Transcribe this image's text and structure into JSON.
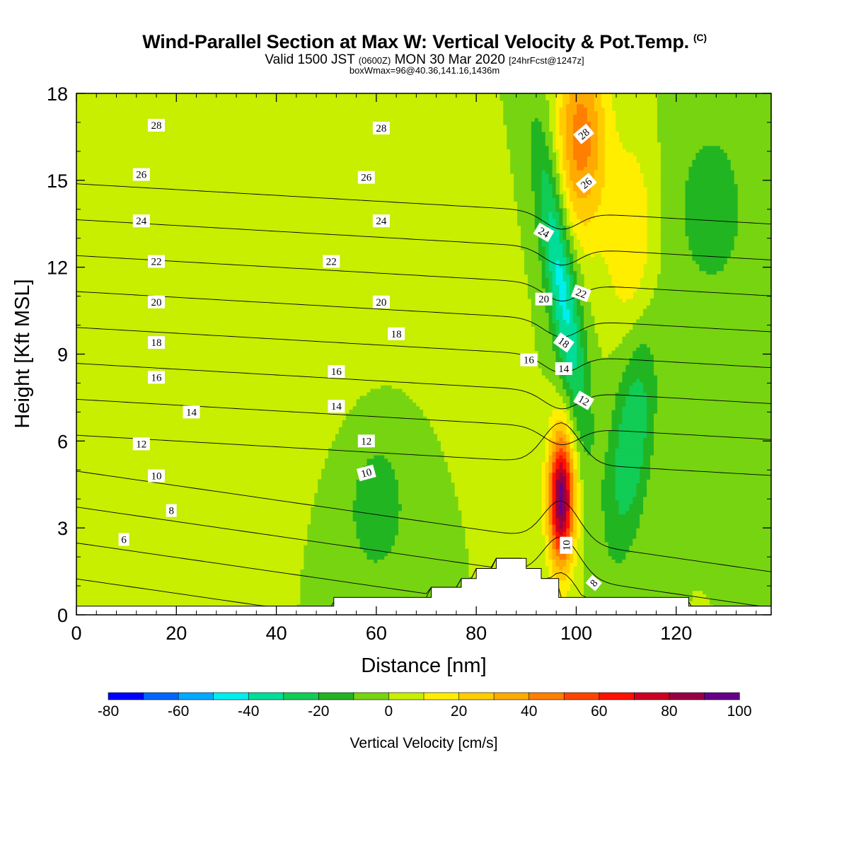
{
  "header": {
    "title": "Wind-Parallel Section at Max W: Vertical Velocity & Pot.Temp.",
    "copyright": "(C)",
    "valid_prefix": "Valid 1500 JST",
    "valid_utc": "(0600Z)",
    "valid_date": "MON 30 Mar 2020",
    "forecast": "[24hrFcst@1247z]",
    "box_info": "boxWmax=96@40.36,141.16,1436m"
  },
  "colorbar": {
    "label": "Vertical Velocity [cm/s]",
    "bounds": [
      -80,
      -70,
      -60,
      -50,
      -40,
      -30,
      -20,
      -10,
      0,
      10,
      20,
      30,
      40,
      50,
      60,
      70,
      80,
      90,
      100
    ],
    "tick_labels": [
      "-80",
      "-60",
      "-40",
      "-20",
      "0",
      "20",
      "40",
      "60",
      "80",
      "100"
    ],
    "colors": [
      "#0000ff",
      "#0066ff",
      "#00aaff",
      "#00eeee",
      "#00dd99",
      "#11cc55",
      "#22b522",
      "#77d411",
      "#c8ee00",
      "#ffee00",
      "#ffcc00",
      "#ffaa00",
      "#ff7f00",
      "#ff4400",
      "#ff1100",
      "#cc0022",
      "#990044",
      "#660088"
    ]
  },
  "chart_data": {
    "type": "heatmap",
    "title": "Wind-Parallel Section at Max W: Vertical Velocity & Pot.Temp.",
    "xlabel": "Distance [nm]",
    "ylabel": "Height [Kft MSL]",
    "xlim": [
      0,
      139
    ],
    "ylim": [
      0,
      18
    ],
    "x_ticks": [
      0,
      20,
      40,
      60,
      80,
      100,
      120
    ],
    "y_ticks": [
      0,
      3,
      6,
      9,
      12,
      15,
      18
    ],
    "background_w": 0,
    "w_features": [
      {
        "kind": "updraft",
        "x": 97,
        "y": 4.0,
        "w_max": 96
      },
      {
        "kind": "updraft",
        "x": 101,
        "y": 16.5,
        "w_max": 45
      },
      {
        "kind": "updraft",
        "x": 111,
        "y": 13.0,
        "w_max": 20
      },
      {
        "kind": "downdraft",
        "x": 97,
        "y": 11.5,
        "w_min": -45
      },
      {
        "kind": "downdraft",
        "x": 111,
        "y": 6.0,
        "w_min": -30
      },
      {
        "kind": "downdraft",
        "x": 60,
        "y": 4.0,
        "w_min": -15
      },
      {
        "kind": "downdraft",
        "x": 127,
        "y": 14.0,
        "w_min": -15
      },
      {
        "kind": "weak-updraft",
        "x": 45,
        "y": 10.0,
        "w_max": 8
      }
    ],
    "terrain": [
      {
        "x": 0,
        "h": 0.3
      },
      {
        "x": 51.5,
        "h": 0.3
      },
      {
        "x": 51.5,
        "h": 0.6
      },
      {
        "x": 71,
        "h": 0.6
      },
      {
        "x": 71,
        "h": 0.95
      },
      {
        "x": 77,
        "h": 0.95
      },
      {
        "x": 77,
        "h": 1.25
      },
      {
        "x": 80,
        "h": 1.25
      },
      {
        "x": 80,
        "h": 1.6
      },
      {
        "x": 84,
        "h": 1.6
      },
      {
        "x": 84,
        "h": 1.95
      },
      {
        "x": 90,
        "h": 1.95
      },
      {
        "x": 90,
        "h": 1.6
      },
      {
        "x": 93,
        "h": 1.6
      },
      {
        "x": 93,
        "h": 1.25
      },
      {
        "x": 96.5,
        "h": 1.25
      },
      {
        "x": 96.5,
        "h": 0.6
      },
      {
        "x": 122.5,
        "h": 0.6
      },
      {
        "x": 122.5,
        "h": 0.3
      },
      {
        "x": 139,
        "h": 0.3
      }
    ],
    "isentropes": [
      6,
      8,
      10,
      12,
      14,
      16,
      18,
      20,
      22,
      24,
      26,
      28
    ],
    "isentrope_labels": [
      {
        "text": "28",
        "x": 16,
        "y": 16.9
      },
      {
        "text": "28",
        "x": 61,
        "y": 16.8
      },
      {
        "text": "28",
        "x": 101.5,
        "y": 16.6,
        "rot": -40
      },
      {
        "text": "26",
        "x": 13,
        "y": 15.2
      },
      {
        "text": "26",
        "x": 58,
        "y": 15.1
      },
      {
        "text": "26",
        "x": 102,
        "y": 14.9,
        "rot": -40
      },
      {
        "text": "24",
        "x": 13,
        "y": 13.6
      },
      {
        "text": "24",
        "x": 61,
        "y": 13.6
      },
      {
        "text": "24",
        "x": 93.5,
        "y": 13.2,
        "rot": 30
      },
      {
        "text": "22",
        "x": 16,
        "y": 12.2
      },
      {
        "text": "22",
        "x": 51,
        "y": 12.2
      },
      {
        "text": "22",
        "x": 101,
        "y": 11.1,
        "rot": 20
      },
      {
        "text": "20",
        "x": 16,
        "y": 10.8
      },
      {
        "text": "20",
        "x": 61,
        "y": 10.8
      },
      {
        "text": "20",
        "x": 93.5,
        "y": 10.9
      },
      {
        "text": "18",
        "x": 16,
        "y": 9.4
      },
      {
        "text": "18",
        "x": 64,
        "y": 9.7
      },
      {
        "text": "18",
        "x": 97.5,
        "y": 9.4,
        "rot": 35
      },
      {
        "text": "16",
        "x": 16,
        "y": 8.2
      },
      {
        "text": "16",
        "x": 52,
        "y": 8.4
      },
      {
        "text": "16",
        "x": 90.5,
        "y": 8.8
      },
      {
        "text": "14",
        "x": 97.5,
        "y": 8.5
      },
      {
        "text": "14",
        "x": 23,
        "y": 7.0
      },
      {
        "text": "14",
        "x": 52,
        "y": 7.2
      },
      {
        "text": "12",
        "x": 13,
        "y": 5.9
      },
      {
        "text": "12",
        "x": 58,
        "y": 6.0
      },
      {
        "text": "12",
        "x": 101.5,
        "y": 7.4,
        "rot": 30
      },
      {
        "text": "10",
        "x": 16,
        "y": 4.8
      },
      {
        "text": "10",
        "x": 58,
        "y": 4.9,
        "rot": -15
      },
      {
        "text": "10",
        "x": 98,
        "y": 2.4,
        "rot": -90
      },
      {
        "text": "8",
        "x": 19,
        "y": 3.6
      },
      {
        "text": "8",
        "x": 103.5,
        "y": 1.1,
        "rot": -50
      },
      {
        "text": "6",
        "x": 9.5,
        "y": 2.6
      }
    ]
  }
}
